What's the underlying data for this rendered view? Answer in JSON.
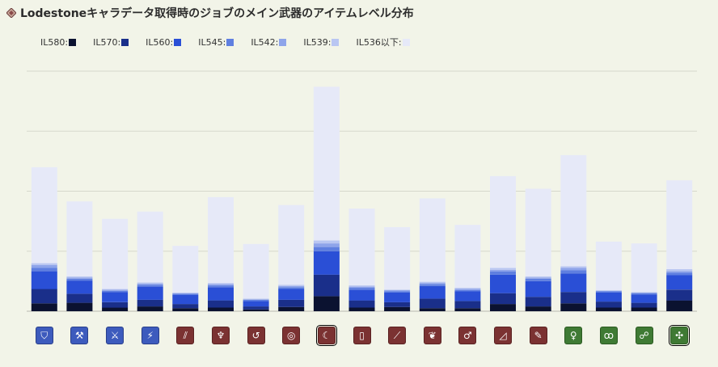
{
  "title": "Lodestoneキャラデータ取得時のジョブのメイン武器のアイテムレベル分布",
  "title_icon": "diamond-icon",
  "legend": [
    {
      "label": "IL580:",
      "color": "#0b1230"
    },
    {
      "label": "IL570:",
      "color": "#1a2f8a"
    },
    {
      "label": "IL560:",
      "color": "#2a4fd6"
    },
    {
      "label": "IL545:",
      "color": "#5f7fe0"
    },
    {
      "label": "IL542:",
      "color": "#8ea4ea"
    },
    {
      "label": "IL539:",
      "color": "#b9c6f2"
    },
    {
      "label": "IL536以下:",
      "color": "#e6e9f8"
    }
  ],
  "jobs": [
    {
      "icon": "shield-sword-icon",
      "role": "tank",
      "glyph": "⛉"
    },
    {
      "icon": "axe-icon",
      "role": "tank",
      "glyph": "⚒"
    },
    {
      "icon": "dark-sword-icon",
      "role": "tank",
      "glyph": "⚔"
    },
    {
      "icon": "gunblade-icon",
      "role": "tank",
      "glyph": "⚡"
    },
    {
      "icon": "claws-icon",
      "role": "dps",
      "glyph": "⫽"
    },
    {
      "icon": "lance-icon",
      "role": "dps",
      "glyph": "♆"
    },
    {
      "icon": "knife-icon",
      "role": "dps",
      "glyph": "↺"
    },
    {
      "icon": "katana-icon",
      "role": "dps",
      "glyph": "◎"
    },
    {
      "icon": "scythe-icon",
      "role": "dps",
      "glyph": "☾"
    },
    {
      "icon": "pistol-icon",
      "role": "dps",
      "glyph": "▯"
    },
    {
      "icon": "harp-icon",
      "role": "dps",
      "glyph": "⟋"
    },
    {
      "icon": "chakram-icon",
      "role": "dps",
      "glyph": "❦"
    },
    {
      "icon": "gun-icon",
      "role": "dps",
      "glyph": "♂"
    },
    {
      "icon": "tome-icon",
      "role": "dps",
      "glyph": "◿"
    },
    {
      "icon": "rapier-icon",
      "role": "dps",
      "glyph": "✎"
    },
    {
      "icon": "cane-icon",
      "role": "healer",
      "glyph": "♀"
    },
    {
      "icon": "book-icon",
      "role": "healer",
      "glyph": "ꝏ"
    },
    {
      "icon": "astro-icon",
      "role": "healer",
      "glyph": "☍"
    },
    {
      "icon": "nouliths-icon",
      "role": "healer",
      "glyph": "✣"
    }
  ],
  "selected_jobs": [
    8,
    18
  ],
  "chart_data": {
    "type": "bar",
    "stacked": true,
    "series": [
      {
        "name": "IL580",
        "values": [
          13,
          14,
          6,
          8,
          5,
          6,
          3,
          7,
          25,
          6,
          7,
          5,
          5,
          12,
          8,
          13,
          6,
          6,
          18
        ]
      },
      {
        "name": "IL570",
        "values": [
          24,
          15,
          9,
          11,
          7,
          12,
          5,
          12,
          36,
          12,
          8,
          16,
          12,
          18,
          16,
          19,
          10,
          8,
          18
        ]
      },
      {
        "name": "IL560",
        "values": [
          30,
          22,
          17,
          22,
          15,
          22,
          9,
          18,
          39,
          18,
          16,
          21,
          16,
          31,
          26,
          31,
          15,
          14,
          24
        ]
      },
      {
        "name": "IL545",
        "values": [
          5,
          3,
          2,
          3,
          2,
          3,
          2,
          3,
          7,
          3,
          2,
          3,
          2,
          5,
          4,
          5,
          2,
          2,
          4
        ]
      },
      {
        "name": "IL542",
        "values": [
          5,
          2,
          2,
          2,
          1,
          2,
          1,
          2,
          6,
          2,
          2,
          2,
          2,
          3,
          2,
          4,
          1,
          1,
          3
        ]
      },
      {
        "name": "IL539",
        "values": [
          3,
          2,
          1,
          2,
          1,
          2,
          1,
          2,
          5,
          2,
          1,
          2,
          2,
          3,
          2,
          3,
          1,
          1,
          3
        ]
      },
      {
        "name": "IL536以下",
        "values": [
          160,
          125,
          117,
          118,
          78,
          143,
          91,
          133,
          256,
          128,
          104,
          139,
          105,
          153,
          146,
          185,
          81,
          81,
          148
        ]
      }
    ],
    "ylim": [
      0,
      400
    ],
    "grid": true,
    "legend_position": "top-left"
  }
}
